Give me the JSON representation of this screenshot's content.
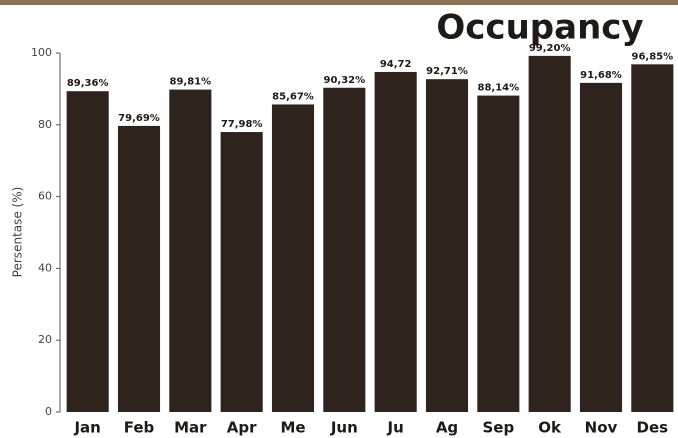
{
  "chart_data": {
    "type": "bar",
    "title": "Occupancy",
    "y_label": "Persentase (%)",
    "categories": [
      "Jan",
      "Feb",
      "Mar",
      "Apr",
      "Me",
      "Jun",
      "Ju",
      "Ag",
      "Sep",
      "Ok",
      "Nov",
      "Des"
    ],
    "values": [
      89.36,
      79.69,
      89.81,
      77.98,
      85.67,
      90.32,
      94.72,
      92.71,
      88.14,
      99.2,
      91.68,
      96.85
    ],
    "value_labels": [
      "89,36%",
      "79,69%",
      "89,81%",
      "77,98%",
      "85,67%",
      "90,32%",
      "94,72",
      "92,71%",
      "88,14%",
      "99,20%",
      "91,68%",
      "96,85%"
    ],
    "color": "#2e241d",
    "ylim": [
      0,
      100
    ],
    "yticks": [
      0,
      20,
      40,
      60,
      80,
      100
    ]
  }
}
